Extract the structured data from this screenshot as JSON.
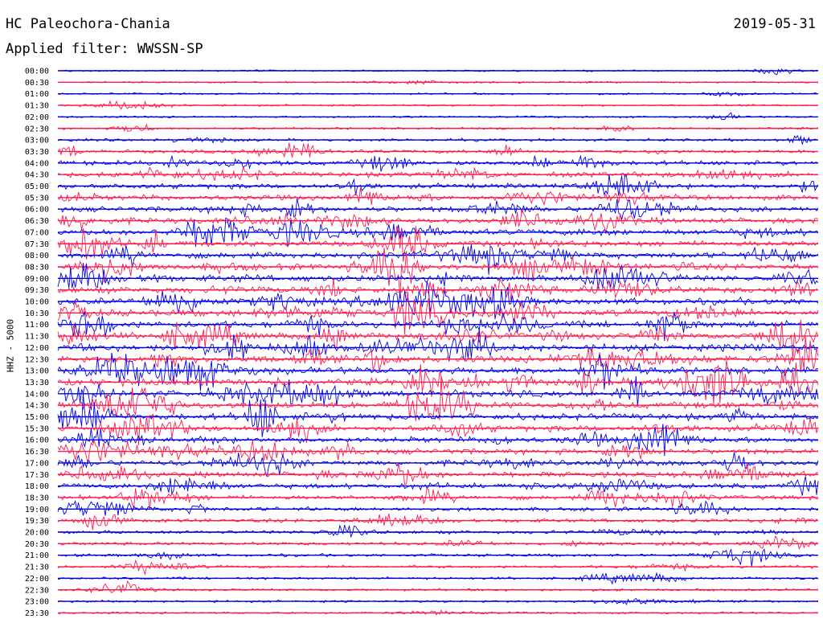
{
  "header": {
    "station": "HC Paleochora-Chania",
    "date": "2019-05-31",
    "filter": "Applied filter: WWSSN-SP",
    "channel": "HHZ - 5000"
  },
  "colors": {
    "blue": "#0000e6",
    "red": "#ff1a4d"
  },
  "chart_data": {
    "type": "helicorder",
    "ylabel": "HHZ - 5000",
    "series_colors": [
      "#0000e6",
      "#ff1a4d"
    ],
    "rows": [
      {
        "time": "00:00",
        "color": "blue",
        "activity": 0.3
      },
      {
        "time": "00:30",
        "color": "red",
        "activity": 0.3
      },
      {
        "time": "01:00",
        "color": "blue",
        "activity": 0.4
      },
      {
        "time": "01:30",
        "color": "red",
        "activity": 0.4
      },
      {
        "time": "02:00",
        "color": "blue",
        "activity": 0.5
      },
      {
        "time": "02:30",
        "color": "red",
        "activity": 0.7
      },
      {
        "time": "03:00",
        "color": "blue",
        "activity": 1.0
      },
      {
        "time": "03:30",
        "color": "red",
        "activity": 1.6
      },
      {
        "time": "04:00",
        "color": "blue",
        "activity": 2.4
      },
      {
        "time": "04:30",
        "color": "red",
        "activity": 2.6
      },
      {
        "time": "05:00",
        "color": "blue",
        "activity": 2.6
      },
      {
        "time": "05:30",
        "color": "red",
        "activity": 2.8
      },
      {
        "time": "06:00",
        "color": "blue",
        "activity": 2.8
      },
      {
        "time": "06:30",
        "color": "red",
        "activity": 3.0
      },
      {
        "time": "07:00",
        "color": "blue",
        "activity": 3.2
      },
      {
        "time": "07:30",
        "color": "red",
        "activity": 3.2
      },
      {
        "time": "08:00",
        "color": "blue",
        "activity": 3.4
      },
      {
        "time": "08:30",
        "color": "red",
        "activity": 3.5
      },
      {
        "time": "09:00",
        "color": "blue",
        "activity": 3.6
      },
      {
        "time": "09:30",
        "color": "red",
        "activity": 3.8
      },
      {
        "time": "10:00",
        "color": "blue",
        "activity": 3.8
      },
      {
        "time": "10:30",
        "color": "red",
        "activity": 3.8
      },
      {
        "time": "11:00",
        "color": "blue",
        "activity": 3.8
      },
      {
        "time": "11:30",
        "color": "red",
        "activity": 4.0
      },
      {
        "time": "12:00",
        "color": "blue",
        "activity": 4.0
      },
      {
        "time": "12:30",
        "color": "red",
        "activity": 4.0
      },
      {
        "time": "13:00",
        "color": "blue",
        "activity": 4.0
      },
      {
        "time": "13:30",
        "color": "red",
        "activity": 4.0
      },
      {
        "time": "14:00",
        "color": "blue",
        "activity": 3.8
      },
      {
        "time": "14:30",
        "color": "red",
        "activity": 3.8
      },
      {
        "time": "15:00",
        "color": "blue",
        "activity": 3.6
      },
      {
        "time": "15:30",
        "color": "red",
        "activity": 3.4
      },
      {
        "time": "16:00",
        "color": "blue",
        "activity": 3.2
      },
      {
        "time": "16:30",
        "color": "red",
        "activity": 3.0
      },
      {
        "time": "17:00",
        "color": "blue",
        "activity": 3.0
      },
      {
        "time": "17:30",
        "color": "red",
        "activity": 2.8
      },
      {
        "time": "18:00",
        "color": "blue",
        "activity": 2.6
      },
      {
        "time": "18:30",
        "color": "red",
        "activity": 2.2
      },
      {
        "time": "19:00",
        "color": "blue",
        "activity": 2.0
      },
      {
        "time": "19:30",
        "color": "red",
        "activity": 1.8
      },
      {
        "time": "20:00",
        "color": "blue",
        "activity": 1.6
      },
      {
        "time": "20:30",
        "color": "red",
        "activity": 1.4
      },
      {
        "time": "21:00",
        "color": "blue",
        "activity": 1.2
      },
      {
        "time": "21:30",
        "color": "red",
        "activity": 1.0
      },
      {
        "time": "22:00",
        "color": "blue",
        "activity": 0.9
      },
      {
        "time": "22:30",
        "color": "red",
        "activity": 0.8
      },
      {
        "time": "23:00",
        "color": "blue",
        "activity": 0.7
      },
      {
        "time": "23:30",
        "color": "red",
        "activity": 0.6
      }
    ]
  }
}
